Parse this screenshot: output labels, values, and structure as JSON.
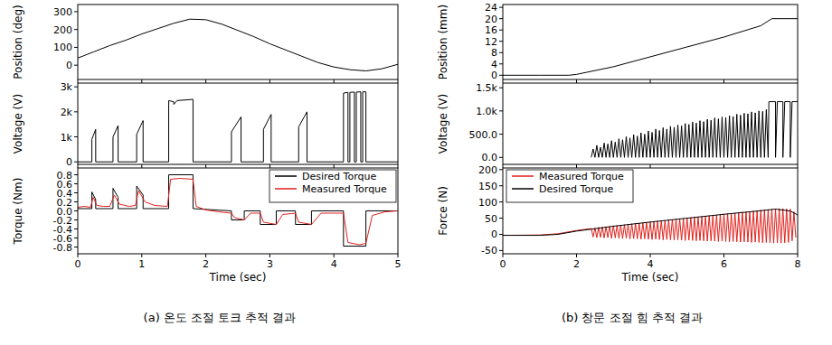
{
  "chart_data": [
    {
      "type": "line",
      "y_label": "Position (deg)",
      "xlim": [
        0,
        5
      ],
      "xticks": [
        0,
        1,
        2,
        3,
        4,
        5
      ],
      "ylim": [
        -80,
        340
      ],
      "yticks": [
        0,
        100,
        200,
        300
      ],
      "tick_labels": "y",
      "color": "#000000",
      "x": [
        0,
        0.25,
        0.5,
        0.75,
        1,
        1.25,
        1.5,
        1.75,
        2,
        2.25,
        2.5,
        2.75,
        3,
        3.25,
        3.5,
        3.75,
        4,
        4.25,
        4.5,
        4.75,
        5
      ],
      "values": [
        40,
        75,
        110,
        140,
        175,
        205,
        235,
        258,
        255,
        230,
        195,
        160,
        120,
        85,
        50,
        15,
        -10,
        -25,
        -32,
        -20,
        5
      ]
    },
    {
      "type": "line",
      "y_label": "Voltage (V)",
      "xlim": [
        0,
        5
      ],
      "xticks": [
        0,
        1,
        2,
        3,
        4,
        5
      ],
      "ylim": [
        -100,
        3150
      ],
      "yticks": [
        0,
        {
          "value": 1000,
          "label": "1k"
        },
        {
          "value": 2000,
          "label": "2k"
        },
        {
          "value": 3000,
          "label": "3k"
        }
      ],
      "tick_labels": "y",
      "color": "#000000",
      "x": [
        0,
        0.22,
        0.22,
        0.28,
        0.28,
        0.55,
        0.55,
        0.63,
        0.63,
        0.92,
        0.92,
        1.02,
        1.02,
        1.42,
        1.42,
        1.5,
        1.5,
        1.55,
        1.8,
        1.8,
        2.4,
        2.4,
        2.55,
        2.55,
        2.9,
        2.9,
        3.02,
        3.02,
        3.45,
        3.45,
        3.58,
        3.58,
        4.15,
        4.15,
        4.22,
        4.22,
        4.25,
        4.25,
        4.32,
        4.32,
        4.35,
        4.35,
        4.42,
        4.42,
        4.45,
        4.45,
        4.5,
        4.5,
        5
      ],
      "values": [
        0,
        0,
        900,
        1300,
        0,
        0,
        1000,
        1450,
        0,
        0,
        1100,
        1650,
        0,
        0,
        2450,
        2400,
        2300,
        2450,
        2500,
        0,
        0,
        1200,
        1800,
        0,
        0,
        1300,
        1900,
        0,
        0,
        1400,
        2000,
        0,
        0,
        2750,
        2780,
        0,
        0,
        2780,
        2790,
        0,
        0,
        2790,
        2800,
        0,
        0,
        2800,
        2800,
        0,
        0
      ]
    },
    {
      "type": "line",
      "x_label": "Time (sec)",
      "y_label": "Torque (Nm)",
      "xlim": [
        0,
        5
      ],
      "xticks": [
        0,
        1,
        2,
        3,
        4,
        5
      ],
      "ylim": [
        -0.95,
        0.95
      ],
      "yticks": [
        -0.8,
        -0.6,
        -0.4,
        -0.2,
        {
          "value": 0,
          "label": "0.0"
        },
        0.2,
        0.4,
        0.6,
        0.8
      ],
      "tick_labels": true,
      "legend": "upper right",
      "series": [
        {
          "name": "Desired Torque",
          "color": "#000000",
          "x": [
            0,
            0.22,
            0.22,
            0.28,
            0.28,
            0.55,
            0.55,
            0.63,
            0.63,
            0.92,
            0.92,
            1.02,
            1.02,
            1.42,
            1.42,
            1.8,
            1.8,
            2.4,
            2.4,
            2.6,
            2.6,
            2.85,
            2.85,
            3.1,
            3.1,
            3.4,
            3.4,
            3.65,
            3.65,
            4.15,
            4.15,
            4.5,
            4.5,
            5
          ],
          "values": [
            0.05,
            0.05,
            0.42,
            0.25,
            0.05,
            0.05,
            0.5,
            0.3,
            0.05,
            0.05,
            0.55,
            0.35,
            0.05,
            0.05,
            0.8,
            0.8,
            0.05,
            0,
            -0.2,
            -0.2,
            0,
            0,
            -0.3,
            -0.3,
            0,
            0,
            -0.3,
            -0.3,
            0,
            0,
            -0.78,
            -0.78,
            0,
            0
          ]
        },
        {
          "name": "Measured Torque",
          "color": "#e0211c",
          "x": [
            0,
            0.1,
            0.2,
            0.24,
            0.3,
            0.4,
            0.5,
            0.57,
            0.65,
            0.8,
            0.9,
            0.95,
            1.05,
            1.2,
            1.4,
            1.45,
            1.6,
            1.8,
            1.85,
            2,
            2.2,
            2.4,
            2.45,
            2.6,
            2.7,
            2.85,
            2.9,
            3.1,
            3.2,
            3.4,
            3.45,
            3.65,
            3.8,
            4,
            4.15,
            4.22,
            4.4,
            4.5,
            4.6,
            4.8,
            5
          ],
          "values": [
            0.08,
            0.1,
            0.08,
            0.3,
            0.12,
            0.1,
            0.1,
            0.35,
            0.15,
            0.1,
            0.12,
            0.45,
            0.2,
            0.12,
            0.1,
            0.7,
            0.72,
            0.7,
            0.1,
            0.02,
            -0.02,
            -0.05,
            -0.15,
            -0.2,
            -0.05,
            -0.05,
            -0.25,
            -0.3,
            -0.08,
            -0.05,
            -0.25,
            -0.3,
            -0.05,
            -0.05,
            -0.05,
            -0.7,
            -0.75,
            -0.72,
            -0.1,
            -0.02,
            0
          ]
        }
      ]
    },
    {
      "type": "line",
      "y_label": "Position (mm)",
      "xlim": [
        0,
        8
      ],
      "xticks": [
        0,
        2,
        4,
        6,
        8
      ],
      "ylim": [
        -1.5,
        25
      ],
      "yticks": [
        0,
        4,
        8,
        12,
        16,
        20,
        24
      ],
      "tick_labels": "y",
      "color": "#000000",
      "x": [
        0,
        1,
        1.8,
        2,
        3,
        4,
        5,
        6,
        7,
        7.3,
        8
      ],
      "values": [
        0,
        0,
        0,
        0.3,
        3,
        6.5,
        10,
        13.5,
        17.5,
        20,
        20
      ]
    },
    {
      "type": "line",
      "y_label": "Voltage (V)",
      "xlim": [
        0,
        8
      ],
      "xticks": [
        0,
        2,
        4,
        6,
        8
      ],
      "ylim": [
        -150,
        1600
      ],
      "yticks": [
        {
          "value": 0,
          "label": "0.0"
        },
        {
          "value": 500,
          "label": "500.0"
        },
        {
          "value": 1000,
          "label": "1.0k"
        },
        {
          "value": 1500,
          "label": "1.5k"
        }
      ],
      "tick_labels": "y",
      "color": "#000000",
      "x": [
        2.4,
        2.45,
        2.5,
        2.55,
        2.6,
        2.65,
        2.7,
        2.75,
        2.8,
        2.85,
        2.9,
        2.95,
        3,
        3.05,
        3.1,
        3.15,
        3.2,
        3.25,
        3.3,
        3.35,
        3.4,
        3.45,
        3.5,
        3.55,
        3.6,
        3.65,
        3.7,
        3.75,
        3.8,
        3.85,
        3.9,
        3.95,
        4,
        4.05,
        4.1,
        4.15,
        4.2,
        4.25,
        4.3,
        4.35,
        4.4,
        4.45,
        4.5,
        4.55,
        4.6,
        4.65,
        4.7,
        4.75,
        4.8,
        4.85,
        4.9,
        4.95,
        5,
        5.05,
        5.1,
        5.15,
        5.2,
        5.25,
        5.3,
        5.35,
        5.4,
        5.45,
        5.5,
        5.55,
        5.6,
        5.65,
        5.7,
        5.75,
        5.8,
        5.85,
        5.9,
        5.95,
        6,
        6.05,
        6.1,
        6.15,
        6.2,
        6.25,
        6.3,
        6.35,
        6.4,
        6.45,
        6.5,
        6.55,
        6.6,
        6.65,
        6.7,
        6.75,
        6.8,
        6.85,
        6.9,
        6.95,
        7,
        7.05,
        7.1,
        7.15,
        7.2,
        7.22,
        7.4,
        7.4,
        7.45,
        7.6,
        7.6,
        7.65,
        7.8,
        7.8,
        7.85,
        8
      ],
      "values": [
        0,
        180,
        0,
        260,
        0,
        220,
        0,
        310,
        0,
        290,
        0,
        360,
        0,
        330,
        0,
        400,
        0,
        380,
        0,
        450,
        0,
        420,
        0,
        490,
        0,
        460,
        0,
        530,
        0,
        500,
        0,
        570,
        0,
        540,
        0,
        610,
        0,
        580,
        0,
        640,
        0,
        610,
        0,
        670,
        0,
        650,
        0,
        700,
        0,
        680,
        0,
        730,
        0,
        710,
        0,
        760,
        0,
        740,
        0,
        790,
        0,
        770,
        0,
        820,
        0,
        800,
        0,
        850,
        0,
        830,
        0,
        870,
        0,
        860,
        0,
        900,
        0,
        880,
        0,
        930,
        0,
        910,
        0,
        950,
        0,
        940,
        0,
        980,
        0,
        960,
        0,
        1000,
        0,
        990,
        0,
        1030,
        0,
        1200,
        1200,
        0,
        1200,
        1200,
        0,
        1200,
        1200,
        0,
        1200,
        1200
      ]
    },
    {
      "type": "line",
      "x_label": "Time (sec)",
      "y_label": "Force (N)",
      "xlim": [
        0,
        8
      ],
      "xticks": [
        0,
        2,
        4,
        6,
        8
      ],
      "ylim": [
        -60,
        205
      ],
      "yticks": [
        -50,
        0,
        50,
        100,
        150,
        200
      ],
      "tick_labels": true,
      "legend": "upper left",
      "series": [
        {
          "name": "Measured Torque",
          "color": "#e0211c",
          "x": [
            0,
            1,
            1.5,
            2,
            2.4,
            2.45,
            2.5,
            2.55,
            2.6,
            2.65,
            2.7,
            2.75,
            2.8,
            2.85,
            2.9,
            2.95,
            3,
            3.05,
            3.1,
            3.15,
            3.2,
            3.25,
            3.3,
            3.35,
            3.4,
            3.45,
            3.5,
            3.55,
            3.6,
            3.65,
            3.7,
            3.75,
            3.8,
            3.85,
            3.9,
            3.95,
            4,
            4.05,
            4.1,
            4.15,
            4.2,
            4.25,
            4.3,
            4.35,
            4.4,
            4.45,
            4.5,
            4.55,
            4.6,
            4.65,
            4.7,
            4.75,
            4.8,
            4.85,
            4.9,
            4.95,
            5,
            5.05,
            5.1,
            5.15,
            5.2,
            5.25,
            5.3,
            5.35,
            5.4,
            5.45,
            5.5,
            5.55,
            5.6,
            5.65,
            5.7,
            5.75,
            5.8,
            5.85,
            5.9,
            5.95,
            6,
            6.05,
            6.1,
            6.15,
            6.2,
            6.25,
            6.3,
            6.35,
            6.4,
            6.45,
            6.5,
            6.55,
            6.6,
            6.65,
            6.7,
            6.75,
            6.8,
            6.85,
            6.9,
            6.95,
            7,
            7.05,
            7.1,
            7.15,
            7.2,
            7.25,
            7.3,
            7.35,
            7.4,
            7.45,
            7.5,
            7.55,
            7.6,
            7.65,
            7.7,
            7.75,
            7.8,
            7.85,
            7.9,
            7.95
          ],
          "values": [
            -3,
            -2,
            2,
            12,
            18,
            -8,
            20,
            -10,
            22,
            -9,
            23,
            -11,
            24,
            -10,
            25,
            -12,
            27,
            -11,
            28,
            -12,
            29,
            -13,
            30,
            -12,
            31,
            -14,
            33,
            -13,
            34,
            -14,
            35,
            -15,
            36,
            -14,
            37,
            -15,
            39,
            -16,
            40,
            -15,
            41,
            -16,
            42,
            -17,
            43,
            -16,
            45,
            -17,
            46,
            -18,
            47,
            -17,
            48,
            -18,
            49,
            -19,
            51,
            -18,
            52,
            -19,
            53,
            -20,
            54,
            -19,
            55,
            -20,
            57,
            -21,
            58,
            -20,
            59,
            -21,
            60,
            -22,
            61,
            -21,
            63,
            -22,
            64,
            -23,
            65,
            -22,
            66,
            -23,
            67,
            -24,
            69,
            -23,
            70,
            -24,
            71,
            -25,
            72,
            -24,
            73,
            -25,
            75,
            -26,
            76,
            -25,
            77,
            -26,
            78,
            -27,
            79,
            -26,
            80,
            -27,
            80,
            -26,
            79,
            -25,
            78,
            -20,
            70,
            -10
          ]
        },
        {
          "name": "Desired Torque",
          "color": "#000000",
          "x": [
            0,
            1,
            1.5,
            2,
            3,
            4,
            5,
            6,
            7,
            7.4,
            7.8,
            8
          ],
          "values": [
            -3,
            -3,
            0,
            10,
            25,
            38,
            50,
            62,
            73,
            78,
            72,
            60
          ]
        }
      ]
    }
  ],
  "captions": [
    "(a) 온도 조절 토크 추적 결과",
    "(b) 창문 조절 힘 추적 결과"
  ]
}
